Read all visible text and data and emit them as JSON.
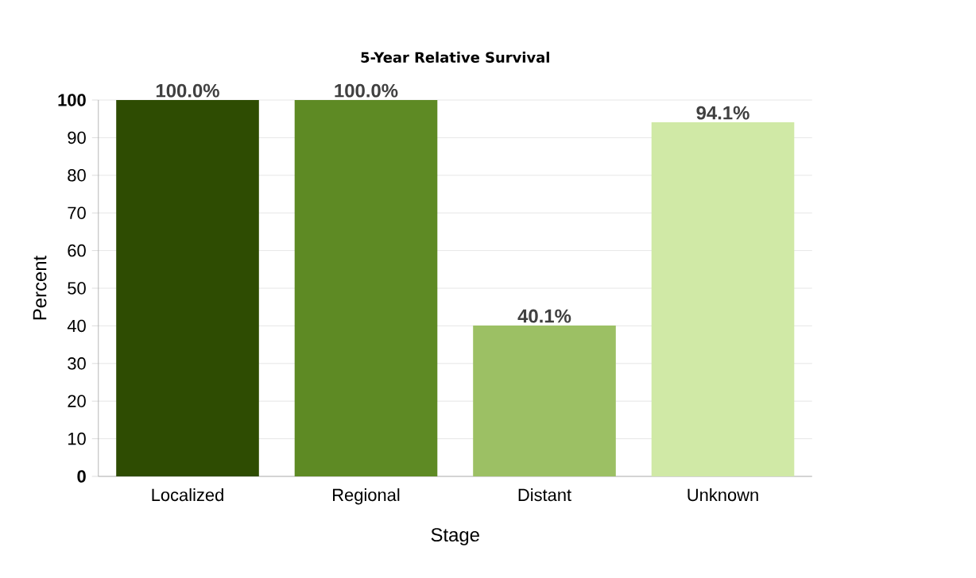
{
  "chart_data": {
    "type": "bar",
    "title": "5-Year Relative Survival",
    "xlabel": "Stage",
    "ylabel": "Percent",
    "categories": [
      "Localized",
      "Regional",
      "Distant",
      "Unknown"
    ],
    "values": [
      100.0,
      100.0,
      40.1,
      94.1
    ],
    "colors": [
      "#2e4c02",
      "#5e8a24",
      "#9cc064",
      "#d0e9a6"
    ],
    "value_labels": [
      "100.0%",
      "100.0%",
      "40.1%",
      "94.1%"
    ],
    "ylim": [
      0,
      100
    ],
    "yticks": [
      0,
      10,
      20,
      30,
      40,
      50,
      60,
      70,
      80,
      90,
      100
    ],
    "grid": "y"
  }
}
